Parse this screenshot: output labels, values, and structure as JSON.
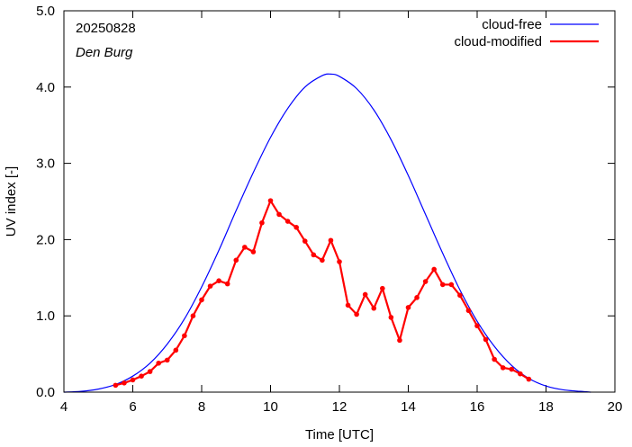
{
  "chart_data": {
    "type": "line",
    "xlabel": "Time  [UTC]",
    "ylabel": "UV index  [-]",
    "xlim": [
      4,
      20
    ],
    "ylim": [
      0,
      5
    ],
    "xticks": [
      4,
      6,
      8,
      10,
      12,
      14,
      16,
      18,
      20
    ],
    "yticks": [
      0.0,
      1.0,
      2.0,
      3.0,
      4.0,
      5.0
    ],
    "xtick_labels": [
      "4",
      "6",
      "8",
      "10",
      "12",
      "14",
      "16",
      "18",
      "20"
    ],
    "ytick_labels": [
      "0.0",
      "1.0",
      "2.0",
      "3.0",
      "4.0",
      "5.0"
    ],
    "grid": false,
    "legend_position": "top-right",
    "annotations": {
      "date": "20250828",
      "station": "Den Burg"
    },
    "colors": {
      "cloud_free": "#0000ff",
      "cloud_modified": "#ff0000"
    },
    "series": [
      {
        "name": "cloud-free",
        "style": "line",
        "x": [
          4.0,
          4.5,
          5.0,
          5.5,
          6.0,
          6.5,
          7.0,
          7.5,
          8.0,
          8.5,
          9.0,
          9.5,
          10.0,
          10.5,
          11.0,
          11.5,
          11.75,
          12.0,
          12.5,
          13.0,
          13.5,
          14.0,
          14.5,
          15.0,
          15.5,
          16.0,
          16.5,
          17.0,
          17.5,
          18.0,
          18.5,
          19.0,
          19.3
        ],
        "y": [
          0.0,
          0.01,
          0.04,
          0.1,
          0.21,
          0.38,
          0.63,
          0.96,
          1.38,
          1.86,
          2.38,
          2.88,
          3.34,
          3.72,
          4.0,
          4.15,
          4.17,
          4.14,
          3.98,
          3.7,
          3.31,
          2.84,
          2.33,
          1.82,
          1.34,
          0.93,
          0.6,
          0.35,
          0.18,
          0.08,
          0.03,
          0.01,
          0.0
        ]
      },
      {
        "name": "cloud-modified",
        "style": "line-points",
        "x": [
          5.5,
          5.75,
          6.0,
          6.25,
          6.5,
          6.75,
          7.0,
          7.25,
          7.5,
          7.75,
          8.0,
          8.25,
          8.5,
          8.75,
          9.0,
          9.25,
          9.5,
          9.75,
          10.0,
          10.25,
          10.5,
          10.75,
          11.0,
          11.25,
          11.5,
          11.75,
          12.0,
          12.25,
          12.5,
          12.75,
          13.0,
          13.25,
          13.5,
          13.75,
          14.0,
          14.25,
          14.5,
          14.75,
          15.0,
          15.25,
          15.5,
          15.75,
          16.0,
          16.25,
          16.5,
          16.75,
          17.0,
          17.25,
          17.5
        ],
        "y": [
          0.09,
          0.12,
          0.16,
          0.21,
          0.27,
          0.38,
          0.42,
          0.55,
          0.74,
          1.0,
          1.21,
          1.39,
          1.46,
          1.42,
          1.73,
          1.9,
          1.84,
          2.22,
          2.51,
          2.33,
          2.24,
          2.16,
          1.98,
          1.8,
          1.73,
          1.99,
          1.71,
          1.14,
          1.02,
          1.28,
          1.1,
          1.36,
          0.98,
          0.68,
          1.11,
          1.24,
          1.45,
          1.61,
          1.41,
          1.41,
          1.27,
          1.07,
          0.87,
          0.69,
          0.43,
          0.32,
          0.3,
          0.24,
          0.17
        ]
      }
    ]
  }
}
